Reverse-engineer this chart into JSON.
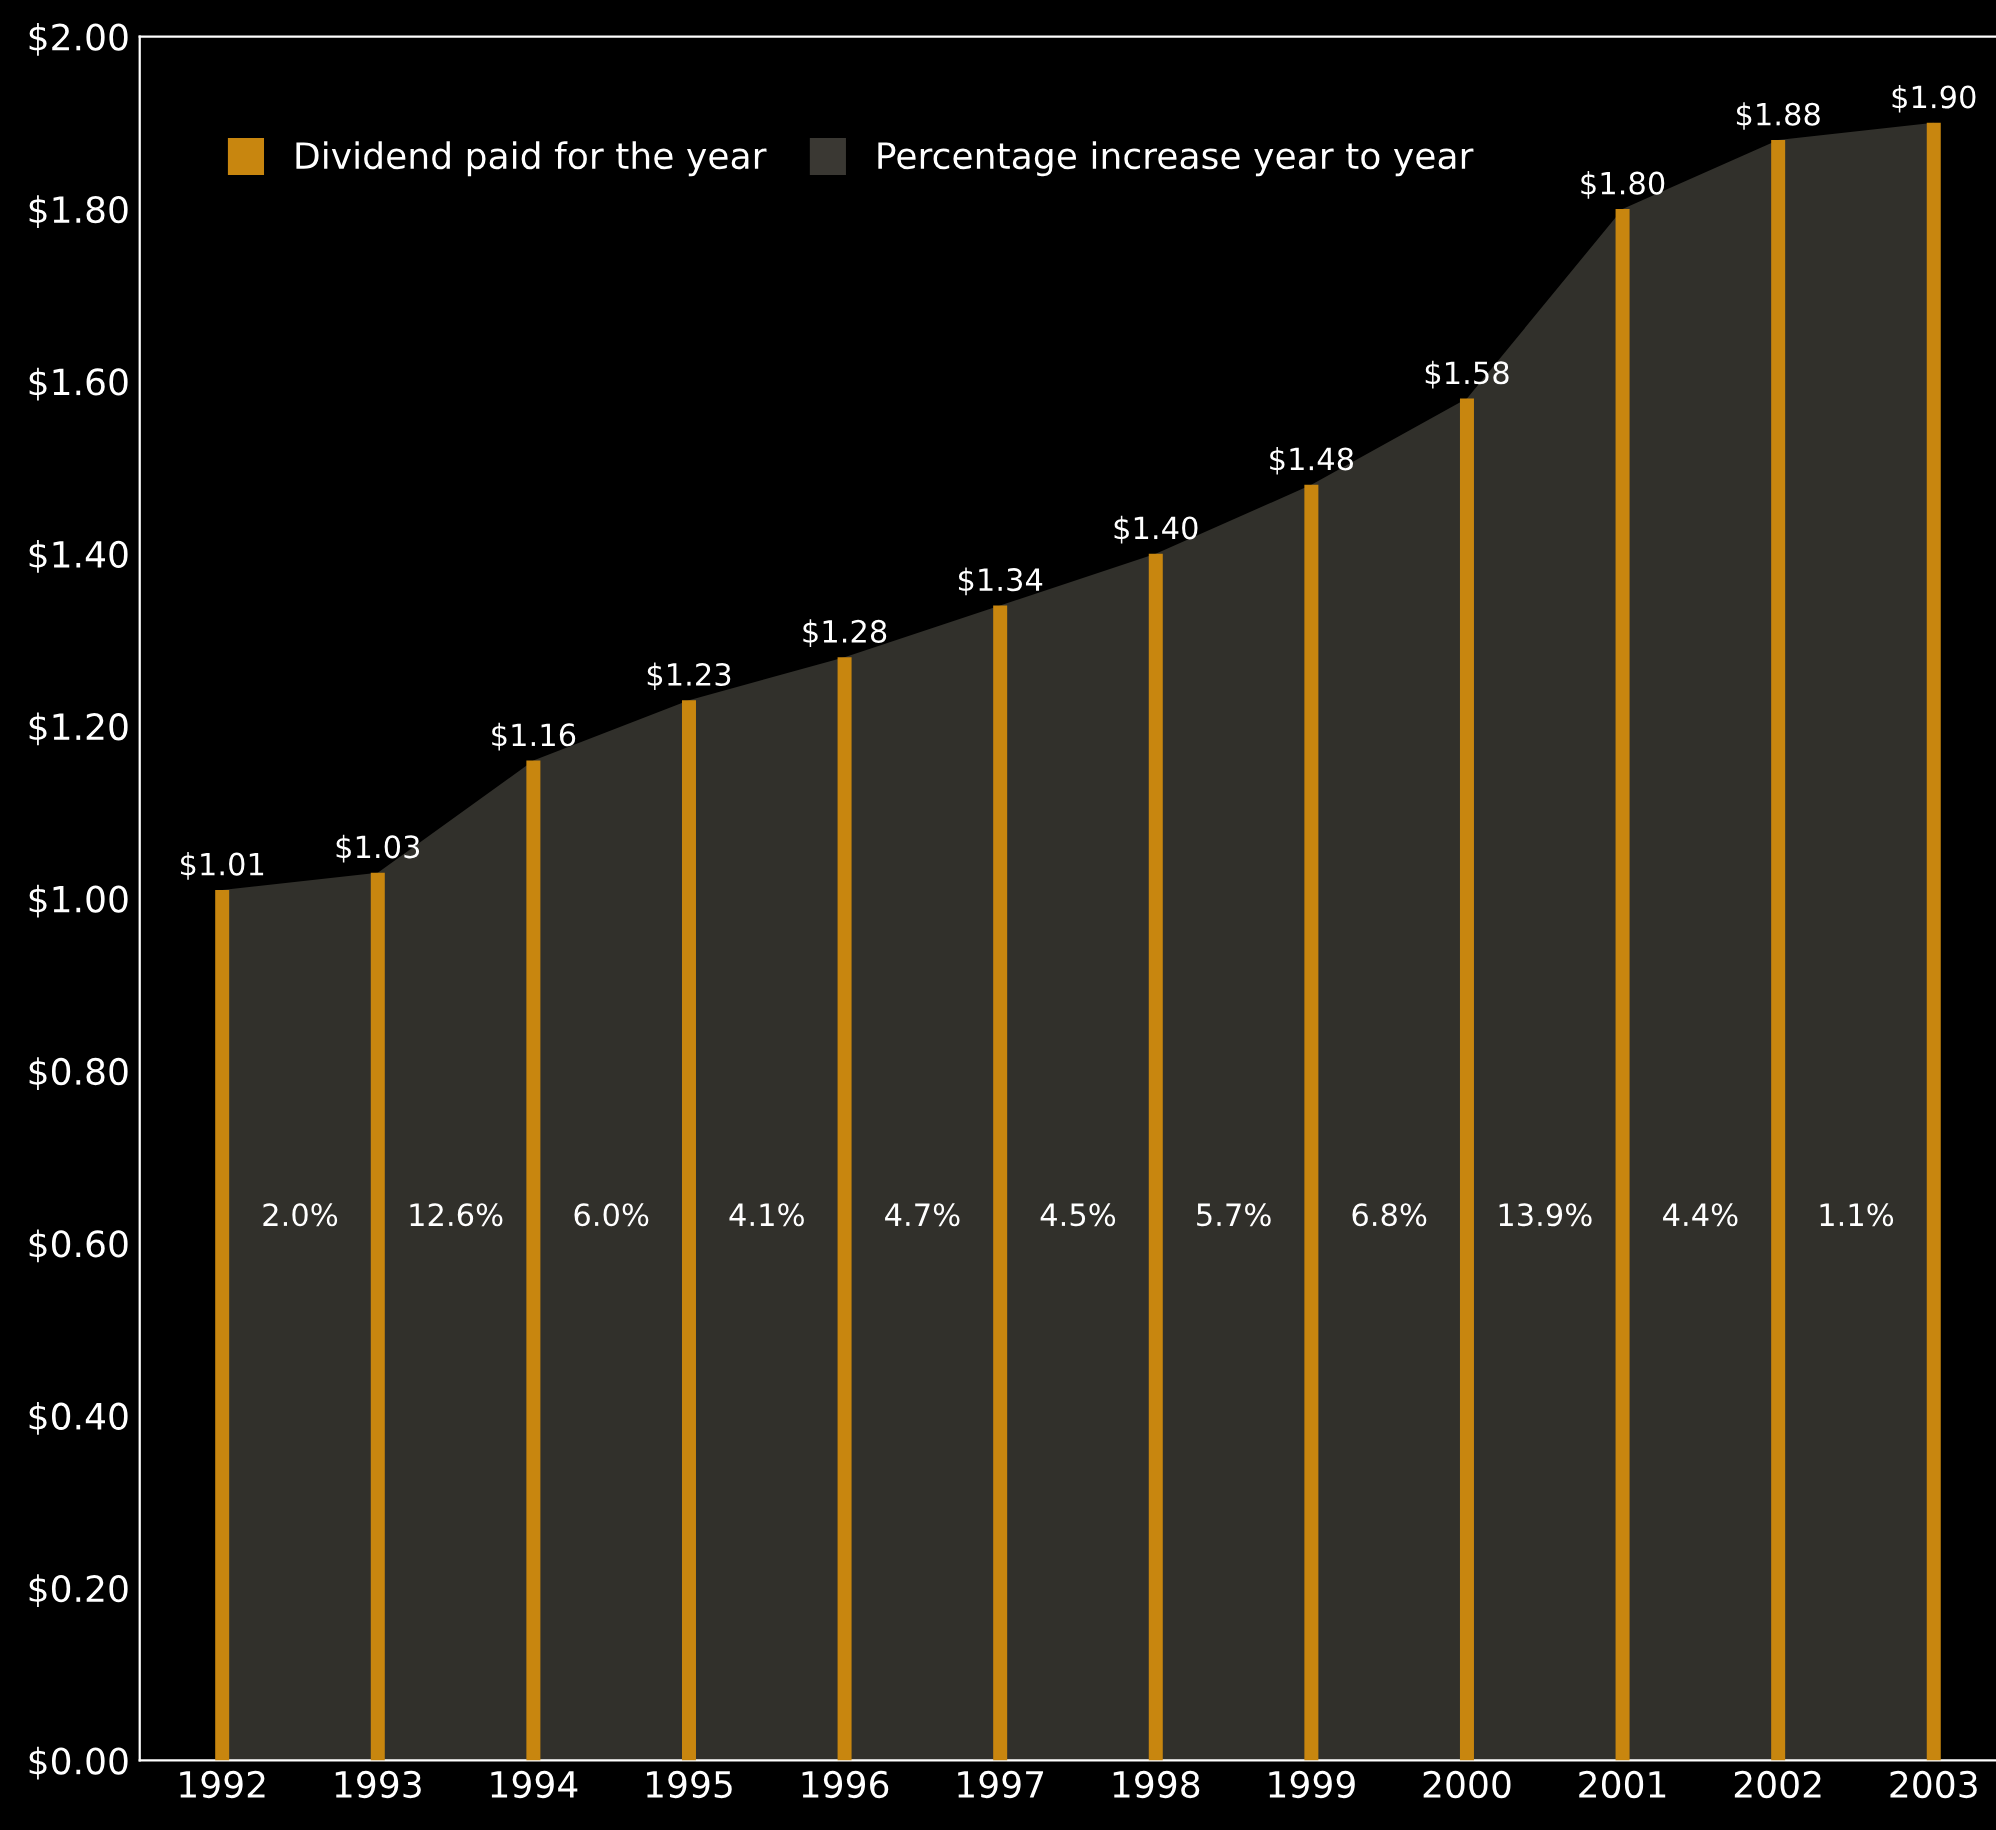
{
  "chart_data": {
    "type": "bar",
    "categories": [
      "1992",
      "1993",
      "1994",
      "1995",
      "1996",
      "1997",
      "1998",
      "1999",
      "2000",
      "2001",
      "2002",
      "2003"
    ],
    "series": [
      {
        "name": "Percentage increase year to year",
        "type": "area",
        "color": "#3a3833",
        "values": [
          1.01,
          1.03,
          1.16,
          1.23,
          1.28,
          1.34,
          1.4,
          1.48,
          1.58,
          1.8,
          1.88,
          1.9
        ]
      },
      {
        "name": "Dividend paid for the year",
        "color": "#c8860f",
        "values": [
          1.01,
          1.03,
          1.16,
          1.23,
          1.28,
          1.34,
          1.4,
          1.48,
          1.58,
          1.8,
          1.88,
          1.9
        ],
        "value_labels": [
          "$1.01",
          "$1.03",
          "$1.16",
          "$1.23",
          "$1.28",
          "$1.34",
          "$1.40",
          "$1.48",
          "$1.58",
          "$1.80",
          "$1.88",
          "$1.90"
        ]
      }
    ],
    "ylim": [
      0,
      2
    ],
    "yticks": [
      {
        "value": 0,
        "label": "$0.00"
      },
      {
        "value": 0.2,
        "label": "$0.20"
      },
      {
        "value": 0.4,
        "label": "$0.40"
      },
      {
        "value": 0.6,
        "label": "$0.60"
      },
      {
        "value": 0.8,
        "label": "$0.80"
      },
      {
        "value": 1.0,
        "label": "$1.00"
      },
      {
        "value": 1.2,
        "label": "$1.20"
      },
      {
        "value": 1.4,
        "label": "$1.40"
      },
      {
        "value": 1.6,
        "label": "$1.60"
      },
      {
        "value": 1.8,
        "label": "$1.80"
      },
      {
        "value": 2.0,
        "label": "$2.00"
      }
    ],
    "annotations": [
      "2.0%",
      "12.6%",
      "6.0%",
      "4.1%",
      "4.7%",
      "4.5%",
      "5.7%",
      "6.8%",
      "13.9%",
      "4.4%",
      "1.1%"
    ],
    "grid": false,
    "legend": "top left"
  }
}
